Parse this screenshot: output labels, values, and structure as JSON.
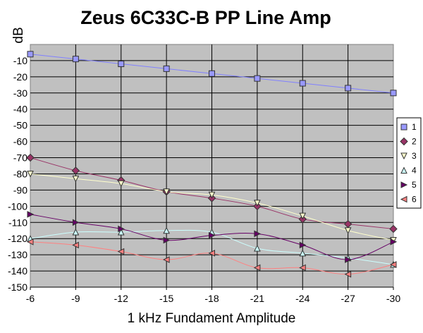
{
  "chart_data": {
    "type": "line",
    "title": "Zeus 6C33C-B PP Line Amp",
    "xlabel": "1 kHz Fundament Amplitude",
    "ylabel": "dB",
    "categories": [
      "-6",
      "-9",
      "-12",
      "-15",
      "-18",
      "-21",
      "-24",
      "-27",
      "-30"
    ],
    "y_ticks": [
      "-10",
      "-20",
      "-30",
      "-40",
      "-50",
      "-60",
      "-70",
      "-80",
      "-90",
      "-100",
      "-110",
      "-120",
      "-130",
      "-140",
      "-150"
    ],
    "ylim": [
      -150,
      0
    ],
    "grid": true,
    "legend_position": "right",
    "plot_background": "#c0c0c0",
    "series": [
      {
        "name": "1",
        "color": "#8080ff",
        "marker": "square",
        "marker_fill": "#9999ff",
        "values": [
          -6,
          -9,
          -12,
          -15,
          -18,
          -21,
          -24,
          -27,
          -30
        ]
      },
      {
        "name": "2",
        "color": "#993366",
        "marker": "diamond",
        "marker_fill": "#993366",
        "values": [
          -70,
          -78,
          -84,
          -91,
          -95,
          -100,
          -108,
          -111,
          -114
        ]
      },
      {
        "name": "3",
        "color": "#ffffcc",
        "marker": "triangle-down",
        "marker_fill": "#ffffcc",
        "values": [
          -80,
          -83,
          -86,
          -91,
          -93,
          -98,
          -106,
          -115,
          -121
        ]
      },
      {
        "name": "4",
        "color": "#ccffff",
        "marker": "triangle-up",
        "marker_fill": "#ccffff",
        "values": [
          -120,
          -116,
          -116,
          -115,
          -116,
          -126,
          -129,
          -132,
          -136
        ]
      },
      {
        "name": "5",
        "color": "#660066",
        "marker": "triangle-right",
        "marker_fill": "#660066",
        "values": [
          -105,
          -110,
          -114,
          -121,
          -118,
          -117,
          -124,
          -133,
          -122
        ]
      },
      {
        "name": "6",
        "color": "#ff8080",
        "marker": "triangle-left",
        "marker_fill": "#ff8080",
        "values": [
          -122,
          -124,
          -128,
          -133,
          -129,
          -138,
          -138,
          -142,
          -136
        ]
      }
    ]
  }
}
